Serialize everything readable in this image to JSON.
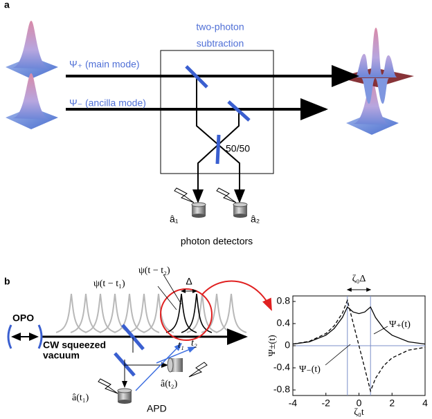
{
  "panel_a": {
    "label": "a",
    "title": [
      "two-photon",
      "subtraction"
    ],
    "main_mode": "Ψ₊ (main mode)",
    "ancilla_mode": "Ψ₋ (ancilla mode)",
    "beam_splitter": "50/50",
    "detector_1": "â₁",
    "detector_2": "â₂",
    "detectors": "photon detectors"
  },
  "panel_b": {
    "label": "b",
    "opo": "OPO",
    "source": [
      "CW squeezed",
      "vacuum"
    ],
    "pulse_1": "ψ(t − t₁)",
    "pulse_2": "ψ(t − t₂)",
    "delay": "Δ",
    "time_1": "t₁",
    "time_2": "t₂",
    "detector_1": "â(t₁)",
    "detector_2": "â(t₂)",
    "apd": "APD",
    "plot": {
      "type": "line",
      "x": [
        -4,
        -3,
        -2,
        -1.5,
        -1,
        -0.7,
        -0.35,
        0,
        0.35,
        0.7,
        1,
        1.5,
        2,
        3,
        4
      ],
      "series": [
        {
          "name": "Ψ₊(t)",
          "color": "#000000",
          "dashed": false,
          "values": [
            0.03,
            0.07,
            0.19,
            0.31,
            0.51,
            0.7,
            0.61,
            0.58,
            0.61,
            0.7,
            0.51,
            0.31,
            0.19,
            0.07,
            0.03
          ]
        },
        {
          "name": "Ψ₋(t)",
          "color": "#000000",
          "dashed": true,
          "values": [
            0.03,
            0.08,
            0.22,
            0.36,
            0.59,
            0.82,
            0.41,
            0,
            -0.41,
            -0.82,
            -0.59,
            -0.36,
            -0.22,
            -0.08,
            -0.03
          ]
        }
      ],
      "xlim": [
        -4,
        4
      ],
      "ylim": [
        -0.9,
        0.9
      ],
      "xticks": [
        -4,
        -2,
        0,
        2,
        4
      ],
      "yticks": [
        -0.8,
        -0.4,
        0,
        0.4,
        0.8
      ],
      "xlabel": "ζ₀t",
      "ylabel": "Ψ±(t)",
      "delay_label": "ζ₀Δ",
      "delay_lines": [
        -0.7,
        0.7
      ],
      "zero_line": 0
    }
  }
}
